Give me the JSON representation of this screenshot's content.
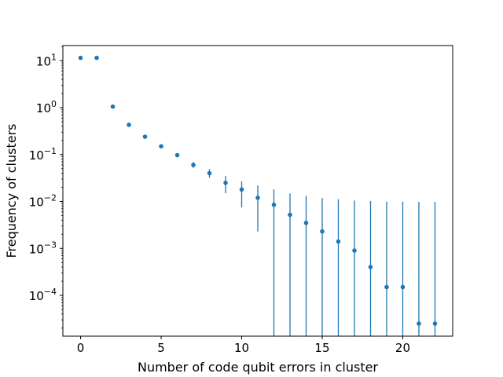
{
  "chart_data": {
    "type": "scatter",
    "title": "",
    "xlabel": "Number of code qubit errors in cluster",
    "ylabel": "Frequency of clusters",
    "xscale": "linear",
    "yscale": "log",
    "xlim": [
      -1.1,
      23.1
    ],
    "ylim": [
      1.35e-05,
      21
    ],
    "grid": false,
    "marker_color": "#1f77b4",
    "x_ticks": [
      0,
      5,
      10,
      15,
      20
    ],
    "y_ticks": [
      {
        "value": 0.0001,
        "base": "10",
        "exp": "−4"
      },
      {
        "value": 0.001,
        "base": "10",
        "exp": "−3"
      },
      {
        "value": 0.01,
        "base": "10",
        "exp": "−2"
      },
      {
        "value": 0.1,
        "base": "10",
        "exp": "−1"
      },
      {
        "value": 1,
        "base": "10",
        "exp": "0"
      },
      {
        "value": 10,
        "base": "10",
        "exp": "1"
      }
    ],
    "points": [
      {
        "x": 0,
        "y": 11.5,
        "err_lo": 11.3,
        "err_hi": 11.7
      },
      {
        "x": 1,
        "y": 11.5,
        "err_lo": 11.3,
        "err_hi": 11.7
      },
      {
        "x": 2,
        "y": 1.05,
        "err_lo": 1.02,
        "err_hi": 1.08
      },
      {
        "x": 3,
        "y": 0.43,
        "err_lo": 0.41,
        "err_hi": 0.45
      },
      {
        "x": 4,
        "y": 0.24,
        "err_lo": 0.228,
        "err_hi": 0.252
      },
      {
        "x": 5,
        "y": 0.15,
        "err_lo": 0.142,
        "err_hi": 0.158
      },
      {
        "x": 6,
        "y": 0.097,
        "err_lo": 0.091,
        "err_hi": 0.103
      },
      {
        "x": 7,
        "y": 0.06,
        "err_lo": 0.052,
        "err_hi": 0.069
      },
      {
        "x": 8,
        "y": 0.04,
        "err_lo": 0.032,
        "err_hi": 0.049
      },
      {
        "x": 9,
        "y": 0.025,
        "err_lo": 0.015,
        "err_hi": 0.035
      },
      {
        "x": 10,
        "y": 0.018,
        "err_lo": 0.0075,
        "err_hi": 0.027
      },
      {
        "x": 11,
        "y": 0.012,
        "err_lo": 0.0023,
        "err_hi": 0.022
      },
      {
        "x": 12,
        "y": 0.0085,
        "err_lo": 1e-07,
        "err_hi": 0.018
      },
      {
        "x": 13,
        "y": 0.0052,
        "err_lo": 1e-07,
        "err_hi": 0.0148
      },
      {
        "x": 14,
        "y": 0.0035,
        "err_lo": 1e-07,
        "err_hi": 0.0132
      },
      {
        "x": 15,
        "y": 0.0023,
        "err_lo": 1e-07,
        "err_hi": 0.0118
      },
      {
        "x": 16,
        "y": 0.0014,
        "err_lo": 1e-07,
        "err_hi": 0.0112
      },
      {
        "x": 17,
        "y": 0.0009,
        "err_lo": 1e-07,
        "err_hi": 0.0105
      },
      {
        "x": 18,
        "y": 0.0004,
        "err_lo": 1e-07,
        "err_hi": 0.0102
      },
      {
        "x": 19,
        "y": 0.00015,
        "err_lo": 1e-07,
        "err_hi": 0.0099
      },
      {
        "x": 20,
        "y": 0.00015,
        "err_lo": 1e-07,
        "err_hi": 0.0099
      },
      {
        "x": 21,
        "y": 2.5e-05,
        "err_lo": 1e-07,
        "err_hi": 0.0098
      },
      {
        "x": 22,
        "y": 2.5e-05,
        "err_lo": 1e-07,
        "err_hi": 0.0098
      }
    ]
  }
}
